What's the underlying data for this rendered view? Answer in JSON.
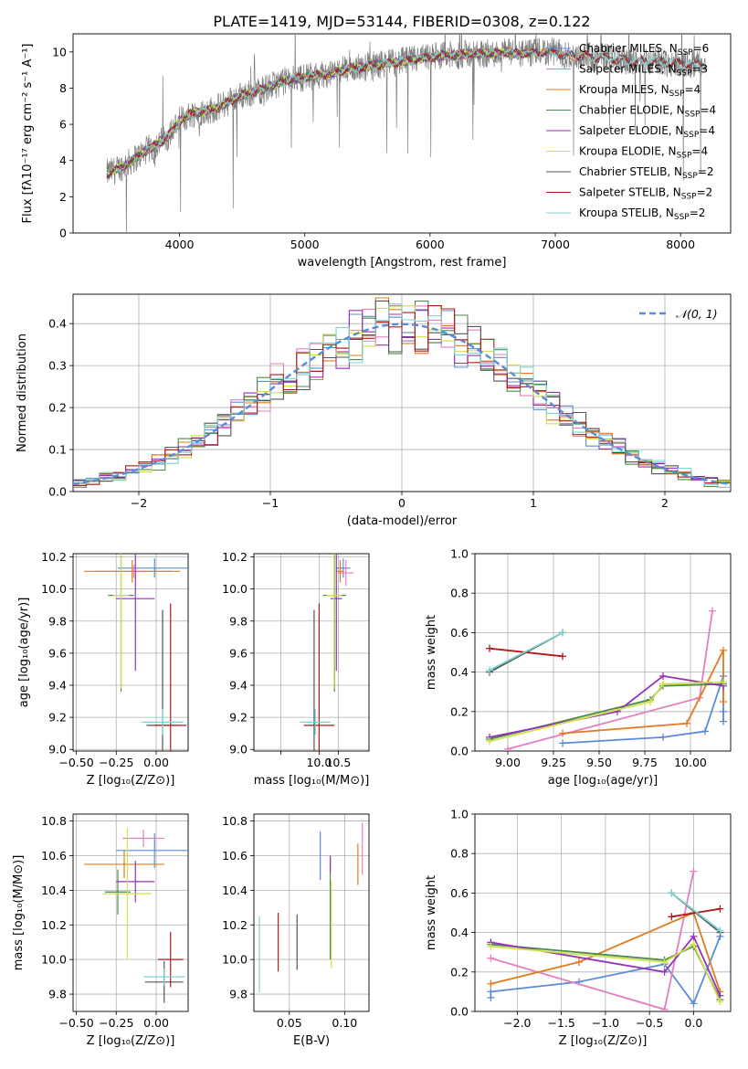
{
  "figure": {
    "title": "PLATE=1419, MJD=53144, FIBERID=0308, z=0.122"
  },
  "colors": {
    "chabrier_miles": "#5b8bd6",
    "salpeter_miles": "#e57fbf",
    "kroupa_miles": "#e07b1f",
    "chabrier_elodie": "#4e8a4e",
    "salpeter_elodie": "#9433b8",
    "kroupa_elodie": "#cfe14b",
    "chabrier_stelib": "#555555",
    "salpeter_stelib": "#b01a1a",
    "kroupa_stelib": "#7fd3d3",
    "data": "#808080",
    "normal": "#5b8bd6"
  },
  "chart_data": [
    {
      "id": "spectrum",
      "type": "line",
      "xlabel": "wavelength [Angstrom, rest frame]",
      "ylabel": "Flux [fλ10⁻¹⁷ erg cm⁻² s⁻¹ A⁻¹]",
      "xlim": [
        3150,
        8400
      ],
      "ylim": [
        0,
        11
      ],
      "xticks": [
        4000,
        5000,
        6000,
        7000,
        8000
      ],
      "yticks": [
        0,
        2,
        4,
        6,
        8,
        10
      ],
      "grid": false,
      "legend_position": "top-right",
      "legend": [
        {
          "model": "chabrier_miles",
          "label": "Chabrier MILES, N",
          "sub": "SSP",
          "value": "=6"
        },
        {
          "model": "salpeter_miles",
          "label": "Salpeter MILES, N",
          "sub": "SSP",
          "value": "=3"
        },
        {
          "model": "kroupa_miles",
          "label": "Kroupa MILES, N",
          "sub": "SSP",
          "value": "=4"
        },
        {
          "model": "chabrier_elodie",
          "label": "Chabrier ELODIE, N",
          "sub": "SSP",
          "value": "=4"
        },
        {
          "model": "salpeter_elodie",
          "label": "Salpeter ELODIE, N",
          "sub": "SSP",
          "value": "=4"
        },
        {
          "model": "kroupa_elodie",
          "label": "Kroupa ELODIE, N",
          "sub": "SSP",
          "value": "=4"
        },
        {
          "model": "chabrier_stelib",
          "label": "Chabrier STELIB, N",
          "sub": "SSP",
          "value": "=2"
        },
        {
          "model": "salpeter_stelib",
          "label": "Salpeter STELIB, N",
          "sub": "SSP",
          "value": "=2"
        },
        {
          "model": "kroupa_stelib",
          "label": "Kroupa STELIB, N",
          "sub": "SSP",
          "value": "=2"
        }
      ],
      "continuum": {
        "wavelength": [
          3420,
          3500,
          3600,
          3700,
          3800,
          3900,
          4000,
          4100,
          4200,
          4300,
          4400,
          4500,
          4600,
          4700,
          4800,
          4900,
          5000,
          5100,
          5200,
          5300,
          5400,
          5500,
          5600,
          5700,
          5800,
          5900,
          6000,
          6100,
          6200,
          6300,
          6400,
          6500,
          6600,
          6700,
          6800,
          6900,
          7000,
          7100,
          7200,
          7300,
          7400,
          7500,
          7600,
          7700,
          7800,
          7900,
          8000,
          8100,
          8200
        ],
        "flux": [
          3.3,
          3.5,
          3.9,
          4.4,
          4.8,
          5.3,
          6.2,
          6.6,
          6.7,
          6.9,
          7.3,
          7.6,
          7.8,
          8.0,
          8.3,
          8.5,
          8.6,
          8.7,
          8.8,
          9.0,
          9.1,
          9.2,
          9.3,
          9.4,
          9.5,
          9.6,
          9.7,
          9.8,
          9.8,
          9.9,
          9.9,
          9.9,
          10.0,
          9.9,
          9.9,
          10.0,
          10.0,
          9.8,
          9.8,
          9.7,
          9.7,
          9.6,
          9.5,
          9.5,
          9.5,
          9.4,
          9.4,
          9.3,
          9.3
        ]
      },
      "model_end_wavelength": {
        "chabrier_miles": 7350,
        "salpeter_miles": 7350,
        "kroupa_miles": 7350,
        "chabrier_elodie": 6800,
        "salpeter_elodie": 6800,
        "kroupa_elodie": 6800,
        "chabrier_stelib": 8200,
        "salpeter_stelib": 8200,
        "kroupa_stelib": 8200
      }
    },
    {
      "id": "residuals",
      "type": "line",
      "xlabel": "(data-model)/error",
      "ylabel": "Normed distribution",
      "xlim": [
        -2.5,
        2.5
      ],
      "ylim": [
        0,
        0.47
      ],
      "xticks": [
        -2,
        -1,
        0,
        1,
        2
      ],
      "yticks": [
        0.0,
        0.1,
        0.2,
        0.3,
        0.4
      ],
      "grid": true,
      "legend_position": "top-right",
      "reference": {
        "label": "𝒩(0, 1)",
        "mean": 0,
        "sigma": 1,
        "style": "dashed"
      },
      "bin_width": 0.1
    },
    {
      "id": "age-vs-z",
      "type": "scatter",
      "xlabel": "Z [log₁₀(Z/Z⊙)]",
      "ylabel": "age  [log₁₀(age/yr)]",
      "xlim": [
        -0.52,
        0.2
      ],
      "ylim": [
        8.99,
        10.22
      ],
      "xticks": [
        -0.5,
        -0.25,
        0.0
      ],
      "xticklabels": [
        "−0.50",
        "−0.25",
        "0.00"
      ],
      "yticks": [
        9.0,
        9.2,
        9.4,
        9.6,
        9.8,
        10.0,
        10.2
      ],
      "grid": true,
      "errorbars": [
        {
          "model": "chabrier_miles",
          "x": -0.01,
          "xerr": 0.23,
          "y": 10.13,
          "yerr": 0.06
        },
        {
          "model": "salpeter_miles",
          "x": -0.14,
          "xerr": 0.24,
          "y": 10.11,
          "yerr": 0.04
        },
        {
          "model": "kroupa_miles",
          "x": -0.15,
          "xerr": 0.3,
          "y": 10.11,
          "yerr": 0.07
        },
        {
          "model": "chabrier_elodie",
          "x": -0.22,
          "xerr": 0.08,
          "y": 9.96,
          "yerr": 0.6
        },
        {
          "model": "salpeter_elodie",
          "x": -0.13,
          "xerr": 0.12,
          "y": 9.94,
          "yerr": 0.45
        },
        {
          "model": "kroupa_elodie",
          "x": -0.22,
          "xerr": 0.05,
          "y": 9.96,
          "yerr": 0.58
        },
        {
          "model": "chabrier_stelib",
          "x": 0.04,
          "xerr": 0.1,
          "y": 9.15,
          "yerr": 0.72
        },
        {
          "model": "salpeter_stelib",
          "x": 0.09,
          "xerr": 0.1,
          "y": 9.15,
          "yerr": 0.76
        },
        {
          "model": "kroupa_stelib",
          "x": 0.04,
          "xerr": 0.13,
          "y": 9.17,
          "yerr": 0.08
        }
      ]
    },
    {
      "id": "age-vs-mass",
      "type": "scatter",
      "xlabel": "mass [log₁₀(M/M⊙)]",
      "xlim": [
        8.3,
        11.3
      ],
      "ylim": [
        8.99,
        10.22
      ],
      "xticks": [
        9.0,
        10.0,
        10.5
      ],
      "xticklabels": [
        "",
        "10.0",
        "10.5"
      ],
      "yticks": [
        9.0,
        9.2,
        9.4,
        9.6,
        9.8,
        10.0,
        10.2
      ],
      "grid": true,
      "errorbars": [
        {
          "model": "chabrier_miles",
          "x": 10.63,
          "xerr": 0.18,
          "y": 10.13,
          "yerr": 0.06
        },
        {
          "model": "salpeter_miles",
          "x": 10.7,
          "xerr": 0.2,
          "y": 10.1,
          "yerr": 0.08
        },
        {
          "model": "kroupa_miles",
          "x": 10.55,
          "xerr": 0.1,
          "y": 10.11,
          "yerr": 0.07
        },
        {
          "model": "chabrier_elodie",
          "x": 10.4,
          "xerr": 0.3,
          "y": 9.96,
          "yerr": 0.6
        },
        {
          "model": "salpeter_elodie",
          "x": 10.45,
          "xerr": 0.15,
          "y": 9.94,
          "yerr": 0.45
        },
        {
          "model": "kroupa_elodie",
          "x": 10.39,
          "xerr": 0.2,
          "y": 9.96,
          "yerr": 0.58
        },
        {
          "model": "chabrier_stelib",
          "x": 9.87,
          "xerr": 0.1,
          "y": 9.15,
          "yerr": 0.72
        },
        {
          "model": "salpeter_stelib",
          "x": 10.0,
          "xerr": 0.4,
          "y": 9.15,
          "yerr": 0.76
        },
        {
          "model": "kroupa_stelib",
          "x": 9.9,
          "xerr": 0.4,
          "y": 9.17,
          "yerr": 0.08
        }
      ]
    },
    {
      "id": "weight-vs-age",
      "type": "line",
      "xlabel": "age  [log₁₀(age/yr)]",
      "ylabel": "mass weight",
      "xlim": [
        8.82,
        10.22
      ],
      "ylim": [
        0,
        1.0
      ],
      "xticks": [
        9.0,
        9.25,
        9.5,
        9.75,
        10.0
      ],
      "xticklabels": [
        "9.00",
        "9.25",
        "9.50",
        "9.75",
        "10.00"
      ],
      "yticks": [
        0.0,
        0.2,
        0.4,
        0.6,
        0.8,
        1.0
      ],
      "grid": true,
      "series": [
        {
          "model": "chabrier_miles",
          "x": [
            9.3,
            9.85,
            10.08,
            10.18,
            10.18,
            10.18
          ],
          "y": [
            0.04,
            0.07,
            0.1,
            0.38,
            0.2,
            0.15
          ]
        },
        {
          "model": "salpeter_miles",
          "x": [
            9.0,
            10.05,
            10.12
          ],
          "y": [
            0.01,
            0.27,
            0.71
          ]
        },
        {
          "model": "kroupa_miles",
          "x": [
            9.3,
            9.98,
            10.18,
            10.18
          ],
          "y": [
            0.09,
            0.14,
            0.51,
            0.25
          ]
        },
        {
          "model": "chabrier_elodie",
          "x": [
            8.9,
            9.78,
            9.85,
            10.18
          ],
          "y": [
            0.06,
            0.26,
            0.33,
            0.34
          ]
        },
        {
          "model": "salpeter_elodie",
          "x": [
            8.9,
            9.6,
            9.85,
            10.18
          ],
          "y": [
            0.07,
            0.2,
            0.38,
            0.33
          ]
        },
        {
          "model": "kroupa_elodie",
          "x": [
            8.9,
            9.78,
            9.85,
            10.18
          ],
          "y": [
            0.05,
            0.25,
            0.34,
            0.35
          ]
        },
        {
          "model": "chabrier_stelib",
          "x": [
            8.9,
            9.3
          ],
          "y": [
            0.4,
            0.6
          ]
        },
        {
          "model": "salpeter_stelib",
          "x": [
            8.9,
            9.3
          ],
          "y": [
            0.52,
            0.48
          ]
        },
        {
          "model": "kroupa_stelib",
          "x": [
            8.9,
            9.3
          ],
          "y": [
            0.41,
            0.6
          ]
        }
      ]
    },
    {
      "id": "mass-vs-z",
      "type": "scatter",
      "xlabel": "Z [log₁₀(Z/Z⊙)]",
      "ylabel": "mass [log₁₀(M/M⊙)]",
      "xlim": [
        -0.52,
        0.2
      ],
      "ylim": [
        9.7,
        10.84
      ],
      "xticks": [
        -0.5,
        -0.25,
        0.0
      ],
      "xticklabels": [
        "−0.50",
        "−0.25",
        "0.00"
      ],
      "yticks": [
        9.8,
        10.0,
        10.2,
        10.4,
        10.6,
        10.8
      ],
      "grid": true,
      "errorbars": [
        {
          "model": "chabrier_miles",
          "x": -0.01,
          "xerr": 0.24,
          "y": 10.63,
          "yerr": 0.1
        },
        {
          "model": "salpeter_miles",
          "x": -0.08,
          "xerr": 0.13,
          "y": 10.7,
          "yerr": 0.05
        },
        {
          "model": "kroupa_miles",
          "x": -0.2,
          "xerr": 0.25,
          "y": 10.55,
          "yerr": 0.08
        },
        {
          "model": "chabrier_elodie",
          "x": -0.24,
          "xerr": 0.08,
          "y": 10.39,
          "yerr": 0.13
        },
        {
          "model": "salpeter_elodie",
          "x": -0.13,
          "xerr": 0.12,
          "y": 10.45,
          "yerr": 0.12
        },
        {
          "model": "kroupa_elodie",
          "x": -0.18,
          "xerr": 0.15,
          "y": 10.38,
          "yerr": 0.38
        },
        {
          "model": "chabrier_stelib",
          "x": 0.05,
          "xerr": 0.12,
          "y": 9.87,
          "yerr": 0.12
        },
        {
          "model": "salpeter_stelib",
          "x": 0.09,
          "xerr": 0.08,
          "y": 10.0,
          "yerr": 0.16
        },
        {
          "model": "kroupa_stelib",
          "x": 0.05,
          "xerr": 0.13,
          "y": 9.9,
          "yerr": 0.05
        }
      ]
    },
    {
      "id": "mass-vs-ebv",
      "type": "scatter",
      "xlabel": "E(B-V)",
      "xlim": [
        0.018,
        0.122
      ],
      "ylim": [
        9.7,
        10.84
      ],
      "xticks": [
        0.05,
        0.1
      ],
      "xticklabels": [
        "0.05",
        "0.10"
      ],
      "yticks": [
        9.8,
        10.0,
        10.2,
        10.4,
        10.6,
        10.8
      ],
      "grid": true,
      "errorbars": [
        {
          "model": "chabrier_miles",
          "x": 0.078,
          "xerr": 0,
          "y": 10.6,
          "yerr": 0.14
        },
        {
          "model": "salpeter_miles",
          "x": 0.116,
          "xerr": 0,
          "y": 10.64,
          "yerr": 0.15
        },
        {
          "model": "kroupa_miles",
          "x": 0.112,
          "xerr": 0,
          "y": 10.55,
          "yerr": 0.12
        },
        {
          "model": "chabrier_elodie",
          "x": 0.087,
          "xerr": 0,
          "y": 10.3,
          "yerr": 0.3
        },
        {
          "model": "salpeter_elodie",
          "x": 0.087,
          "xerr": 0,
          "y": 10.55,
          "yerr": 0.05
        },
        {
          "model": "kroupa_elodie",
          "x": 0.088,
          "xerr": 0,
          "y": 10.2,
          "yerr": 0.25
        },
        {
          "model": "chabrier_stelib",
          "x": 0.057,
          "xerr": 0,
          "y": 10.1,
          "yerr": 0.16
        },
        {
          "model": "salpeter_stelib",
          "x": 0.04,
          "xerr": 0,
          "y": 10.1,
          "yerr": 0.17
        },
        {
          "model": "kroupa_stelib",
          "x": 0.023,
          "xerr": 0,
          "y": 10.03,
          "yerr": 0.22
        }
      ]
    },
    {
      "id": "weight-vs-z",
      "type": "line",
      "xlabel": "Z [log₁₀(Z/Z⊙)]",
      "ylabel": "mass weight",
      "xlim": [
        -2.48,
        0.42
      ],
      "ylim": [
        0,
        1.0
      ],
      "xticks": [
        -2.0,
        -1.5,
        -1.0,
        -0.5,
        0.0
      ],
      "xticklabels": [
        "−2.0",
        "−1.5",
        "−1.0",
        "−0.5",
        "0.0"
      ],
      "yticks": [
        0.0,
        0.2,
        0.4,
        0.6,
        0.8,
        1.0
      ],
      "grid": true,
      "series": [
        {
          "model": "chabrier_miles",
          "x": [
            -2.3,
            -2.3,
            -1.3,
            -0.33,
            0.0,
            0.3
          ],
          "y": [
            0.07,
            0.1,
            0.15,
            0.24,
            0.04,
            0.38
          ]
        },
        {
          "model": "salpeter_miles",
          "x": [
            -2.3,
            -0.33,
            0.0
          ],
          "y": [
            0.27,
            0.01,
            0.71
          ]
        },
        {
          "model": "kroupa_miles",
          "x": [
            -2.3,
            -1.3,
            0.0,
            0.3
          ],
          "y": [
            0.14,
            0.25,
            0.5,
            0.1
          ]
        },
        {
          "model": "chabrier_elodie",
          "x": [
            -2.3,
            -0.33,
            0.0,
            0.3
          ],
          "y": [
            0.34,
            0.26,
            0.33,
            0.06
          ]
        },
        {
          "model": "salpeter_elodie",
          "x": [
            -2.3,
            -0.33,
            0.0,
            0.3
          ],
          "y": [
            0.35,
            0.2,
            0.38,
            0.08
          ]
        },
        {
          "model": "kroupa_elodie",
          "x": [
            -2.3,
            -0.33,
            0.0,
            0.3
          ],
          "y": [
            0.33,
            0.25,
            0.34,
            0.05
          ]
        },
        {
          "model": "chabrier_stelib",
          "x": [
            -0.25,
            0.3
          ],
          "y": [
            0.6,
            0.4
          ]
        },
        {
          "model": "salpeter_stelib",
          "x": [
            -0.25,
            0.3
          ],
          "y": [
            0.48,
            0.52
          ]
        },
        {
          "model": "kroupa_stelib",
          "x": [
            -0.25,
            0.3
          ],
          "y": [
            0.6,
            0.41
          ]
        }
      ]
    }
  ]
}
